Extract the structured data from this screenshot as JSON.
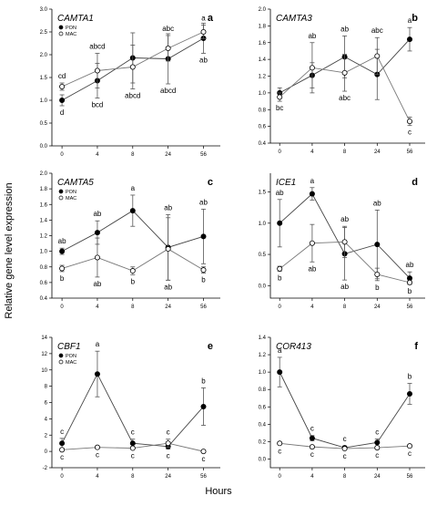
{
  "figure": {
    "ylabel": "Relative gene level expression",
    "xlabel": "Hours",
    "x_ticks": [
      "0",
      "4",
      "8",
      "24",
      "56"
    ]
  },
  "colors": {
    "PON": "#000000",
    "MAC": "#ffffff",
    "line_PON": "#444444",
    "line_MAC": "#777777"
  },
  "chart_data": [
    {
      "type": "line",
      "letter": "a",
      "title": "CAMTA1",
      "legend": [
        "PON",
        "MAC"
      ],
      "ylim": [
        0.0,
        3.0
      ],
      "yticks": [
        "0.0",
        "0.5",
        "1.0",
        "1.5",
        "2.0",
        "2.5",
        "3.0"
      ],
      "categories": [
        "0",
        "4",
        "8",
        "24",
        "56"
      ],
      "series": [
        {
          "name": "PON",
          "values": [
            1.0,
            1.43,
            1.93,
            1.91,
            2.36
          ],
          "err": [
            0.12,
            0.38,
            0.55,
            0.55,
            0.33
          ],
          "letters": [
            "d",
            "bcd",
            "",
            "abcd",
            "ab"
          ]
        },
        {
          "name": "MAC",
          "values": [
            1.3,
            1.65,
            1.73,
            2.14,
            2.5
          ],
          "err": [
            0.08,
            0.38,
            0.48,
            0.28,
            0.15
          ],
          "letters": [
            "cd",
            "abcd",
            "abcd",
            "abc",
            "a"
          ]
        }
      ]
    },
    {
      "type": "line",
      "letter": "b",
      "title": "CAMTA3",
      "legend": [],
      "ylim": [
        0.4,
        2.0
      ],
      "yticks": [
        "0.4",
        "0.6",
        "0.8",
        "1.0",
        "1.2",
        "1.4",
        "1.6",
        "1.8",
        "2.0"
      ],
      "categories": [
        "0",
        "4",
        "8",
        "24",
        "56"
      ],
      "series": [
        {
          "name": "PON",
          "values": [
            1.0,
            1.21,
            1.43,
            1.22,
            1.64
          ],
          "err": [
            0.06,
            0.15,
            0.25,
            0.3,
            0.14
          ],
          "letters": [
            "",
            "",
            "ab",
            "",
            "a"
          ]
        },
        {
          "name": "MAC",
          "values": [
            0.95,
            1.3,
            1.24,
            1.44,
            0.66
          ],
          "err": [
            0.05,
            0.3,
            0.22,
            0.22,
            0.05
          ],
          "letters": [
            "bc",
            "ab",
            "abc",
            "abc",
            "c"
          ]
        }
      ]
    },
    {
      "type": "line",
      "letter": "c",
      "title": "CAMTA5",
      "legend": [
        "PON",
        "MAC"
      ],
      "ylim": [
        0.4,
        2.0
      ],
      "yticks": [
        "0.4",
        "0.6",
        "0.8",
        "1.0",
        "1.2",
        "1.4",
        "1.6",
        "1.8",
        "2.0"
      ],
      "categories": [
        "0",
        "4",
        "8",
        "24",
        "56"
      ],
      "series": [
        {
          "name": "PON",
          "values": [
            1.0,
            1.24,
            1.52,
            1.05,
            1.19
          ],
          "err": [
            0.04,
            0.15,
            0.2,
            0.42,
            0.35
          ],
          "letters": [
            "ab",
            "ab",
            "a",
            "ab",
            "ab"
          ]
        },
        {
          "name": "MAC",
          "values": [
            0.78,
            0.92,
            0.75,
            1.03,
            0.76
          ],
          "err": [
            0.04,
            0.25,
            0.05,
            0.4,
            0.04
          ],
          "letters": [
            "b",
            "ab",
            "b",
            "ab",
            "b"
          ]
        }
      ]
    },
    {
      "type": "line",
      "letter": "d",
      "title": "ICE1",
      "legend": [],
      "ylim": [
        -0.2,
        1.8
      ],
      "yticks": [
        "0.0",
        "0.5",
        "1.0",
        "1.5"
      ],
      "categories": [
        "0",
        "4",
        "8",
        "24",
        "56"
      ],
      "series": [
        {
          "name": "PON",
          "values": [
            1.0,
            1.47,
            0.51,
            0.66,
            0.12
          ],
          "err": [
            0.38,
            0.1,
            0.42,
            0.55,
            0.1
          ],
          "letters": [
            "ab",
            "a",
            "ab",
            "ab",
            "ab"
          ]
        },
        {
          "name": "MAC",
          "values": [
            0.27,
            0.68,
            0.7,
            0.18,
            0.05
          ],
          "err": [
            0.04,
            0.3,
            0.25,
            0.1,
            0.03
          ],
          "letters": [
            "b",
            "ab",
            "ab",
            "b",
            "b"
          ]
        }
      ]
    },
    {
      "type": "line",
      "letter": "e",
      "title": "CBF1",
      "legend": [
        "PON",
        "MAC"
      ],
      "ylim": [
        -2,
        14
      ],
      "yticks": [
        "-2",
        "0",
        "2",
        "4",
        "6",
        "8",
        "10",
        "12",
        "14"
      ],
      "categories": [
        "0",
        "4",
        "8",
        "24",
        "56"
      ],
      "series": [
        {
          "name": "PON",
          "values": [
            1.0,
            9.5,
            1.0,
            0.6,
            5.5
          ],
          "err": [
            0.6,
            2.8,
            0.5,
            0.3,
            2.3
          ],
          "letters": [
            "c",
            "a",
            "c",
            "c",
            "b"
          ]
        },
        {
          "name": "MAC",
          "values": [
            0.2,
            0.5,
            0.4,
            1.0,
            0.0
          ],
          "err": [
            0.1,
            0.1,
            0.1,
            0.5,
            0.1
          ],
          "letters": [
            "c",
            "c",
            "c",
            "c",
            "c"
          ]
        }
      ]
    },
    {
      "type": "line",
      "letter": "f",
      "title": "COR413",
      "legend": [],
      "ylim": [
        -0.1,
        1.4
      ],
      "yticks": [
        "0.0",
        "0.2",
        "0.4",
        "0.6",
        "0.8",
        "1.0",
        "1.2",
        "1.4"
      ],
      "categories": [
        "0",
        "4",
        "8",
        "24",
        "56"
      ],
      "series": [
        {
          "name": "PON",
          "values": [
            1.0,
            0.24,
            0.13,
            0.19,
            0.75
          ],
          "err": [
            0.17,
            0.03,
            0.02,
            0.04,
            0.12
          ],
          "letters": [
            "a",
            "c",
            "c",
            "c",
            "b"
          ]
        },
        {
          "name": "MAC",
          "values": [
            0.18,
            0.14,
            0.12,
            0.13,
            0.15
          ],
          "err": [
            0.01,
            0.01,
            0.01,
            0.01,
            0.01
          ],
          "letters": [
            "c",
            "c",
            "c",
            "c",
            "c"
          ]
        }
      ]
    }
  ]
}
